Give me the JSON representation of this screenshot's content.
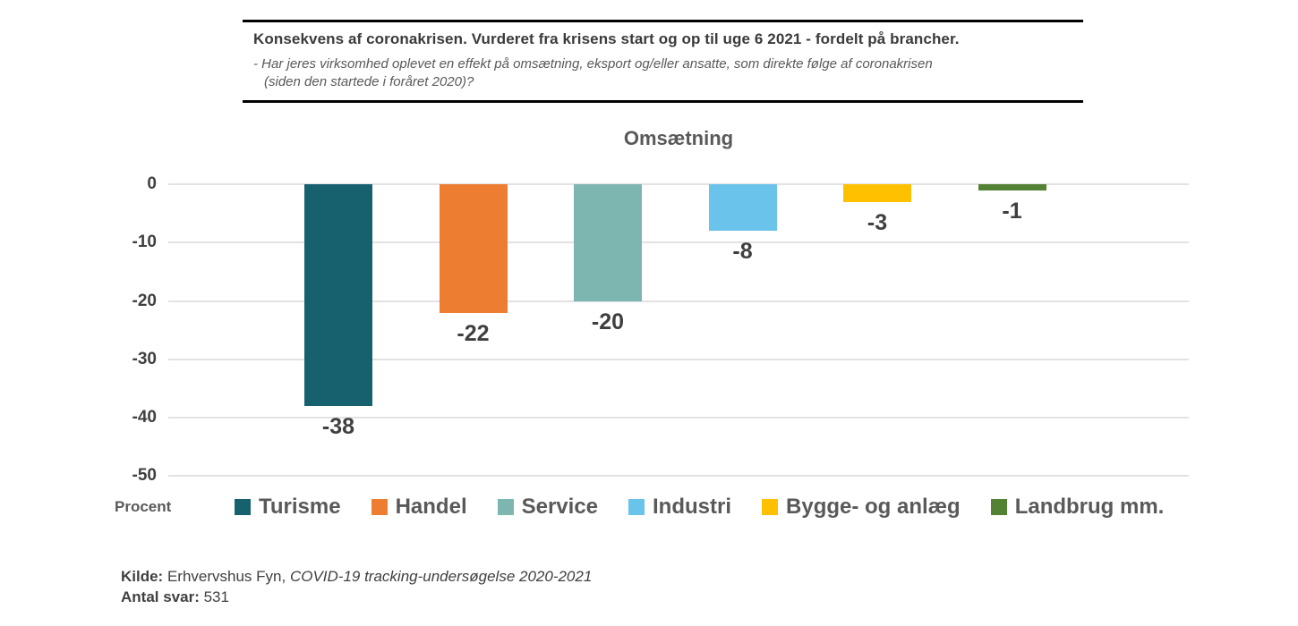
{
  "header": {
    "title": "Konsekvens af coronakrisen. Vurderet fra krisens start og op til uge 6 2021 - fordelt på brancher.",
    "question_line1": "- Har jeres virksomhed oplevet en effekt på omsætning, eksport og/eller ansatte, som direkte følge af coronakrisen",
    "question_line2": "(siden den startede i foråret 2020)?"
  },
  "chart_data": {
    "type": "bar",
    "title": "Omsætning",
    "categories": [
      "Turisme",
      "Handel",
      "Service",
      "Industri",
      "Bygge- og anlæg",
      "Landbrug mm."
    ],
    "values": [
      -38,
      -22,
      -20,
      -8,
      -3,
      -1
    ],
    "colors": [
      "#17616f",
      "#ed7d31",
      "#7db5b0",
      "#69c3ea",
      "#ffc000",
      "#548235"
    ],
    "ylabel": "Procent",
    "xlabel": "",
    "ylim": [
      -50,
      0
    ],
    "yticks": [
      0,
      -10,
      -20,
      -30,
      -40,
      -50
    ],
    "grid": true,
    "legend_position": "bottom",
    "data_labels": [
      "-38",
      "-22",
      "-20",
      "-8",
      "-3",
      "-1"
    ],
    "ytick_labels": [
      "0",
      "-10",
      "-20",
      "-30",
      "-40",
      "-50"
    ]
  },
  "footer": {
    "kilde_label": "Kilde:",
    "kilde_text": " Erhvervshus Fyn, ",
    "kilde_italic": "COVID-19 tracking-undersøgelse 2020-2021",
    "antal_label": "Antal svar:",
    "antal_value": " 531"
  }
}
